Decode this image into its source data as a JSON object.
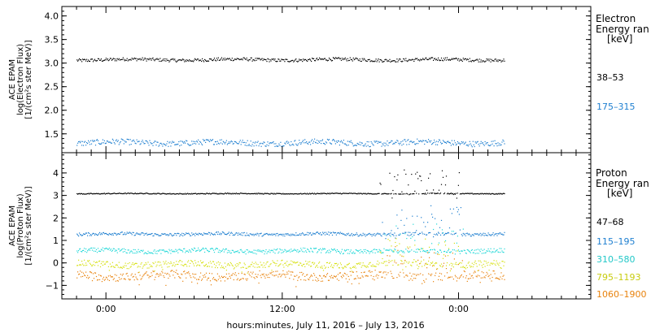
{
  "chart_data": [
    {
      "type": "scatter",
      "ylabel_lines": [
        "ACE EPAM",
        "log(Electron Flux)",
        "[1/(cm²s ster MeV)]"
      ],
      "legend_title": [
        "Electron",
        "Energy ran",
        "[keV]"
      ],
      "ylim": [
        1.1,
        4.2
      ],
      "yticks": [
        1.5,
        2.0,
        2.5,
        3.0,
        3.5,
        4.0
      ],
      "ytick_labels": [
        "1.5",
        "2.0",
        "2.5",
        "3.0",
        "3.5",
        "4.0"
      ],
      "series": [
        {
          "name": "38–53",
          "color": "#000000",
          "level": 3.08,
          "x_start": -2,
          "x_end": 27.1
        },
        {
          "name": "175–315",
          "color": "#1e7fd0",
          "level": 1.32,
          "x_start": -2,
          "x_end": 27.1
        }
      ]
    },
    {
      "type": "scatter",
      "ylabel_lines": [
        "ACE EPAM",
        "log(Proton Flux)",
        "[1/(cm²s ster MeV)]"
      ],
      "legend_title": [
        "Proton",
        "Energy ran",
        "[keV]"
      ],
      "ylim": [
        -1.6,
        4.9
      ],
      "yticks": [
        -1,
        0,
        1,
        2,
        3,
        4
      ],
      "ytick_labels": [
        "−1",
        "0",
        "1",
        "2",
        "3",
        "4"
      ],
      "series": [
        {
          "name": "47–68",
          "color": "#000000",
          "level": 3.1,
          "x_start": -2,
          "x_end": 27.1
        },
        {
          "name": "115–195",
          "color": "#1e7fd0",
          "level": 1.3,
          "x_start": -2,
          "x_end": 27.1
        },
        {
          "name": "310–580",
          "color": "#22d8d8",
          "level": 0.55,
          "x_start": -2,
          "x_end": 27.1
        },
        {
          "name": "795–1193",
          "color": "#d6e010",
          "level": -0.05,
          "x_start": -2,
          "x_end": 27.1
        },
        {
          "name": "1060–1900",
          "color": "#e8820c",
          "level": -0.55,
          "x_start": -2,
          "x_end": 27.1
        }
      ]
    }
  ],
  "x_axis": {
    "xlabel": "hours:minutes, July 11, 2016 – July 13, 2016",
    "xlim_hours": [
      -3.0,
      33.0
    ],
    "ticks_hours": [
      0,
      12,
      24
    ],
    "tick_labels": [
      "0:00",
      "12:00",
      "0:00"
    ]
  }
}
